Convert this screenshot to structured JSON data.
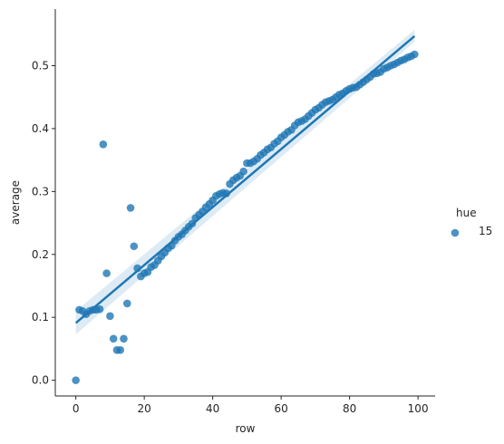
{
  "chart_data": {
    "type": "scatter",
    "title": "",
    "xlabel": "row",
    "ylabel": "average",
    "xlim": [
      -6,
      105
    ],
    "ylim": [
      -0.025,
      0.59
    ],
    "x_ticks": [
      0,
      20,
      40,
      60,
      80,
      100
    ],
    "y_ticks": [
      0.0,
      0.1,
      0.2,
      0.3,
      0.4,
      0.5
    ],
    "x_tick_labels": [
      "0",
      "20",
      "40",
      "60",
      "80",
      "100"
    ],
    "y_tick_labels": [
      "0.0",
      "0.1",
      "0.2",
      "0.3",
      "0.4",
      "0.5"
    ],
    "grid": false,
    "legend": {
      "title": "hue",
      "placement": "right",
      "entries": [
        "15"
      ]
    },
    "colors": {
      "points": "#1f77b4",
      "band": "#1f77b4",
      "axis": "#262626"
    },
    "regression": {
      "x": [
        0,
        99
      ],
      "y": [
        0.091,
        0.547
      ],
      "ci_lower": [
        0.073,
        0.538
      ],
      "ci_upper": [
        0.11,
        0.557
      ]
    },
    "series": [
      {
        "name": "15",
        "x": [
          0,
          1,
          2,
          3,
          4,
          5,
          6,
          7,
          8,
          9,
          10,
          11,
          12,
          13,
          14,
          15,
          16,
          17,
          18,
          19,
          20,
          21,
          22,
          23,
          24,
          25,
          26,
          27,
          28,
          29,
          30,
          31,
          32,
          33,
          34,
          35,
          36,
          37,
          38,
          39,
          40,
          41,
          42,
          43,
          44,
          45,
          46,
          47,
          48,
          49,
          50,
          51,
          52,
          53,
          54,
          55,
          56,
          57,
          58,
          59,
          60,
          61,
          62,
          63,
          64,
          65,
          66,
          67,
          68,
          69,
          70,
          71,
          72,
          73,
          74,
          75,
          76,
          77,
          78,
          79,
          80,
          81,
          82,
          83,
          84,
          85,
          86,
          87,
          88,
          89,
          90,
          91,
          92,
          93,
          94,
          95,
          96,
          97,
          98,
          99
        ],
        "y": [
          0.0,
          0.112,
          0.11,
          0.105,
          0.11,
          0.112,
          0.112,
          0.113,
          0.375,
          0.17,
          0.102,
          0.066,
          0.048,
          0.048,
          0.066,
          0.122,
          0.274,
          0.213,
          0.178,
          0.165,
          0.17,
          0.172,
          0.18,
          0.183,
          0.19,
          0.197,
          0.203,
          0.21,
          0.214,
          0.222,
          0.228,
          0.232,
          0.238,
          0.244,
          0.249,
          0.258,
          0.263,
          0.268,
          0.275,
          0.28,
          0.286,
          0.293,
          0.296,
          0.298,
          0.297,
          0.312,
          0.318,
          0.322,
          0.325,
          0.332,
          0.345,
          0.345,
          0.348,
          0.352,
          0.358,
          0.362,
          0.367,
          0.37,
          0.376,
          0.38,
          0.386,
          0.39,
          0.395,
          0.398,
          0.405,
          0.41,
          0.412,
          0.415,
          0.42,
          0.425,
          0.43,
          0.433,
          0.438,
          0.442,
          0.444,
          0.446,
          0.45,
          0.454,
          0.456,
          0.46,
          0.463,
          0.465,
          0.466,
          0.47,
          0.474,
          0.478,
          0.482,
          0.487,
          0.488,
          0.49,
          0.495,
          0.497,
          0.5,
          0.502,
          0.505,
          0.508,
          0.51,
          0.513,
          0.515,
          0.518
        ]
      }
    ]
  }
}
